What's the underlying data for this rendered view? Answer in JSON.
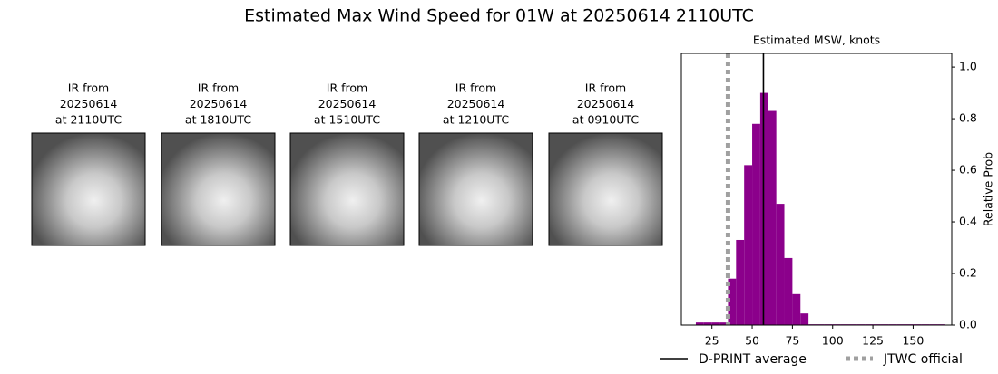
{
  "title": "Estimated Max Wind Speed for 01W at 20250614 2110UTC",
  "panels": [
    {
      "title": [
        "IR from",
        "20250614",
        "at 2110UTC"
      ]
    },
    {
      "title": [
        "IR from",
        "20250614",
        "at 1810UTC"
      ]
    },
    {
      "title": [
        "IR from",
        "20250614",
        "at 1510UTC"
      ]
    },
    {
      "title": [
        "IR from",
        "20250614",
        "at 1210UTC"
      ]
    },
    {
      "title": [
        "IR from",
        "20250614",
        "at 0910UTC"
      ]
    }
  ],
  "chart_data": {
    "type": "histogram",
    "title": "Estimated MSW, knots",
    "y_label": "Relative Prob",
    "color": "#8b008b",
    "bins": [
      15,
      20,
      25,
      30,
      35,
      40,
      45,
      50,
      55,
      60,
      65,
      70,
      75,
      80,
      85,
      90,
      95,
      100,
      105,
      110,
      115,
      120,
      125,
      130,
      135,
      140,
      145,
      150,
      155,
      160,
      165,
      170
    ],
    "values": [
      0.01,
      0.01,
      0.01,
      0.01,
      0.18,
      0.33,
      0.62,
      0.78,
      0.9,
      0.83,
      0.47,
      0.26,
      0.12,
      0.045,
      0.003,
      0.003,
      0.003,
      0.003,
      0.003,
      0.003,
      0.003,
      0.003,
      0.003,
      0.003,
      0.003,
      0.003,
      0.003,
      0.003,
      0.003,
      0.003,
      0.003
    ],
    "xlim": [
      6,
      174
    ],
    "xticks": [
      25,
      50,
      75,
      100,
      125,
      150
    ],
    "ylim": [
      0,
      1.053
    ],
    "yticks": [
      {
        "value": 0,
        "label": "0.0"
      },
      0.2,
      0.4,
      0.6,
      0.8,
      {
        "value": 1,
        "label": "1.0"
      }
    ],
    "lines": [
      {
        "name": "D-PRINT average",
        "x": 57,
        "color": "#000000",
        "style": "solid"
      },
      {
        "name": "JTWC official",
        "x": 35,
        "color": "#a0a0a0",
        "style": "dotted"
      }
    ]
  }
}
